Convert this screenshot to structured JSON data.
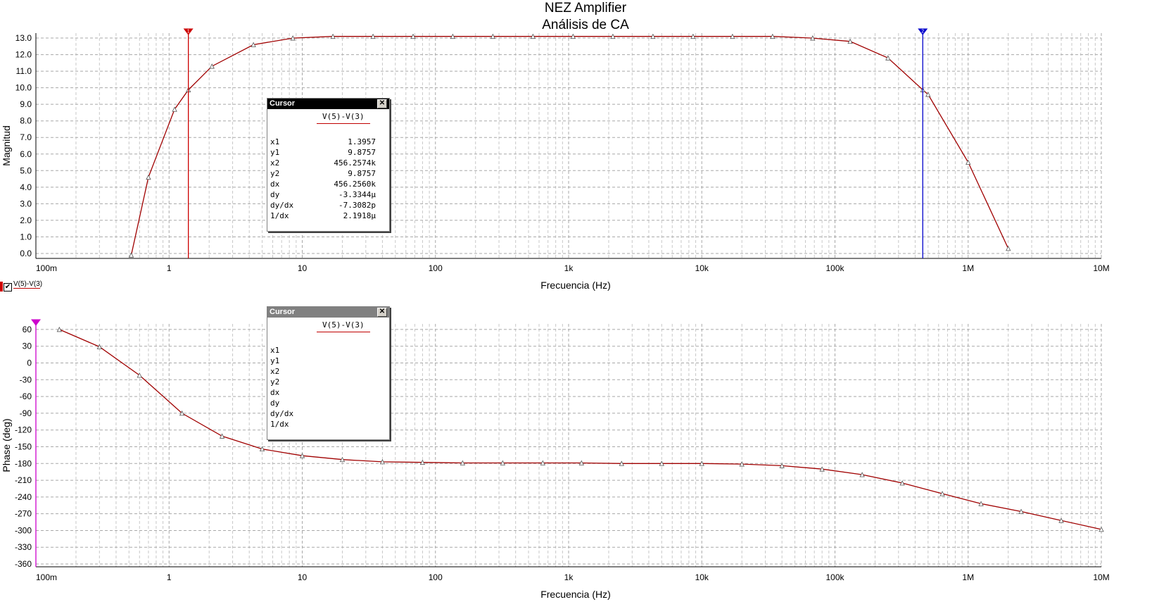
{
  "window": {
    "title": "NEZ Amplifier",
    "subtitle": "Análisis de CA"
  },
  "legend": {
    "checked": true,
    "trace_label": "V(5)-V(3)"
  },
  "cursor_top": {
    "title": "Cursor",
    "trace": "V(5)-V(3)",
    "rows": [
      {
        "label": "x1",
        "value": "1.3957"
      },
      {
        "label": "y1",
        "value": "9.8757"
      },
      {
        "label": "x2",
        "value": "456.2574k"
      },
      {
        "label": "y2",
        "value": "9.8757"
      },
      {
        "label": "dx",
        "value": "456.2560k"
      },
      {
        "label": "dy",
        "value": "-3.3344µ"
      },
      {
        "label": "dy/dx",
        "value": "-7.3082p"
      },
      {
        "label": "1/dx",
        "value": "2.1918µ"
      }
    ]
  },
  "cursor_bottom": {
    "title": "Cursor",
    "trace": "V(5)-V(3)",
    "rows": [
      {
        "label": "x1",
        "value": ""
      },
      {
        "label": "y1",
        "value": ""
      },
      {
        "label": "x2",
        "value": ""
      },
      {
        "label": "y2",
        "value": ""
      },
      {
        "label": "dx",
        "value": ""
      },
      {
        "label": "dy",
        "value": ""
      },
      {
        "label": "dy/dx",
        "value": ""
      },
      {
        "label": "1/dx",
        "value": ""
      }
    ]
  },
  "chart_data": [
    {
      "type": "line",
      "title": "NEZ Amplifier",
      "subtitle": "Análisis de CA",
      "xlabel": "Frecuencia (Hz)",
      "ylabel": "Magnitud",
      "xscale": "log",
      "xlim": [
        0.1,
        10000000
      ],
      "ylim": [
        -0.3,
        13.3
      ],
      "xticks": [
        0.1,
        1,
        10,
        100,
        1000,
        10000,
        100000,
        1000000,
        10000000
      ],
      "xtick_labels": [
        "100m",
        "1",
        "10",
        "100",
        "1k",
        "10k",
        "100k",
        "1M",
        "10M"
      ],
      "yticks": [
        0,
        1,
        2,
        3,
        4,
        5,
        6,
        7,
        8,
        9,
        10,
        11,
        12,
        13
      ],
      "ytick_labels": [
        "0.0",
        "1.0",
        "2.0",
        "3.0",
        "4.0",
        "5.0",
        "6.0",
        "7.0",
        "8.0",
        "9.0",
        "10.0",
        "11.0",
        "12.0",
        "13.0"
      ],
      "grid": true,
      "line_color": "#a00000",
      "series": [
        {
          "name": "V(5)-V(3)",
          "x": [
            0.52,
            0.7,
            1.1,
            1.3957,
            2.1,
            4.3,
            8.5,
            17,
            34,
            68,
            135,
            270,
            540,
            1080,
            2150,
            4300,
            8600,
            17000,
            34000,
            68000,
            130000,
            250000,
            456257,
            500000,
            1000000,
            2000000
          ],
          "y": [
            -0.1,
            4.6,
            8.7,
            9.8757,
            11.3,
            12.6,
            13.0,
            13.1,
            13.1,
            13.1,
            13.1,
            13.1,
            13.1,
            13.1,
            13.1,
            13.1,
            13.1,
            13.1,
            13.1,
            13.0,
            12.8,
            11.8,
            9.8757,
            9.6,
            5.5,
            0.3
          ]
        }
      ],
      "cursors": [
        {
          "label": "1",
          "x": 1.3957,
          "color": "#cc0000"
        },
        {
          "label": "2",
          "x": 456257.4,
          "color": "#0000cc"
        }
      ]
    },
    {
      "type": "line",
      "xlabel": "Frecuencia (Hz)",
      "ylabel": "Phase (deg)",
      "xscale": "log",
      "xlim": [
        0.1,
        10000000
      ],
      "ylim": [
        -365,
        70
      ],
      "xticks": [
        0.1,
        1,
        10,
        100,
        1000,
        10000,
        100000,
        1000000,
        10000000
      ],
      "xtick_labels": [
        "100m",
        "1",
        "10",
        "100",
        "1k",
        "10k",
        "100k",
        "1M",
        "10M"
      ],
      "yticks": [
        60,
        30,
        0,
        -30,
        -60,
        -90,
        -120,
        -150,
        -180,
        -210,
        -240,
        -270,
        -300,
        -330,
        -360
      ],
      "ytick_labels": [
        "60",
        "30",
        "0",
        "-30",
        "-60",
        "-90",
        "-120",
        "-150",
        "-180",
        "-210",
        "-240",
        "-270",
        "-300",
        "-330",
        "-360"
      ],
      "grid": true,
      "line_color": "#a00000",
      "series": [
        {
          "name": "V(5)-V(3)",
          "x": [
            0.15,
            0.3,
            0.6,
            1.25,
            2.5,
            5,
            10,
            20,
            40,
            80,
            160,
            320,
            640,
            1250,
            2500,
            5000,
            10000,
            20000,
            40000,
            80000,
            160000,
            320000,
            640000,
            1250000,
            2500000,
            5000000,
            10000000
          ],
          "y": [
            60,
            29,
            -22,
            -90,
            -131,
            -154,
            -166,
            -173,
            -177,
            -178,
            -179,
            -179,
            -179,
            -179,
            -180,
            -180,
            -180,
            -181,
            -184,
            -190,
            -200,
            -215,
            -234,
            -252,
            -266,
            -282,
            -298
          ]
        }
      ],
      "cursors": [
        {
          "label": "",
          "x": 0.1,
          "color": "#cc00cc"
        }
      ]
    }
  ]
}
